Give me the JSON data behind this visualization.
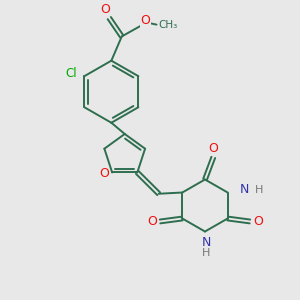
{
  "background_color": "#e8e8e8",
  "bond_color": "#2d6e4e",
  "atom_colors": {
    "O": "#ee1111",
    "N": "#3333aa",
    "Cl": "#00aa00",
    "H": "#777777"
  },
  "figsize": [
    3.0,
    3.0
  ],
  "dpi": 100,
  "lw": 1.4
}
